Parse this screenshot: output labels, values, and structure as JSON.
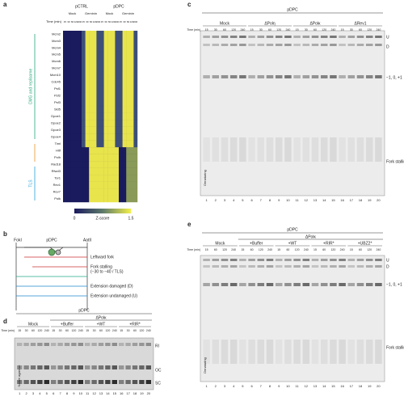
{
  "panel_a": {
    "label": "a",
    "groups": [
      "pCTRL",
      "pDPC"
    ],
    "conditions": [
      "Mock",
      "Geminin",
      "Mock",
      "Geminin"
    ],
    "time_label": "Time (min)",
    "times": [
      "15",
      "30",
      "60",
      "120",
      "240"
    ],
    "rows": [
      "Mcm2",
      "Mcm3",
      "Mcm4",
      "Mcm5",
      "Mcm6",
      "Mcm7",
      "Mcm10",
      "Cdc45",
      "Psf1",
      "Psf2",
      "Psf3",
      "Sld5",
      "Dpoe1",
      "Dpoe2",
      "Dpoe3",
      "Dpoe4",
      "Timl",
      "Hltf",
      "Polh",
      "Rad18",
      "Rfwd3",
      "Tor1",
      "Rev1",
      "Rev7",
      "Polk"
    ],
    "row_groups": [
      "CMG and replisome",
      "TLS"
    ],
    "colorbar_label": "Z-score",
    "colorbar_ticks": [
      "0",
      "1.5"
    ]
  },
  "panel_b": {
    "label": "b",
    "sites": [
      "FokI",
      "pDPC",
      "AatII"
    ],
    "labels": [
      "Leftward fork",
      "Fork stalling",
      "(−30 to −40 / TLS)",
      "Extension damaged (D)",
      "Extension undamaged (U)"
    ]
  },
  "panel_c": {
    "label": "c",
    "plasmid": "pDPC",
    "time_label": "Time (min)",
    "groups": [
      {
        "name": "Mock",
        "times": [
          "15",
          "30",
          "60",
          "120",
          "240"
        ]
      },
      {
        "name": "ΔPolη",
        "times": [
          "15",
          "30",
          "60",
          "120",
          "240"
        ]
      },
      {
        "name": "ΔPolκ",
        "times": [
          "15",
          "30",
          "60",
          "120",
          "240"
        ]
      },
      {
        "name": "ΔRev1",
        "times": [
          "15",
          "30",
          "60",
          "120",
          "240"
        ]
      }
    ],
    "lanes": [
      "1",
      "2",
      "3",
      "4",
      "5",
      "6",
      "7",
      "8",
      "9",
      "10",
      "11",
      "12",
      "13",
      "14",
      "15",
      "16",
      "17",
      "18",
      "19",
      "20"
    ],
    "right_labels": [
      "U",
      "D",
      "−1, 0, +1",
      "Fork stalling (−30 to −40)"
    ],
    "left_label": "Denaturing"
  },
  "panel_d": {
    "label": "d",
    "plasmid": "pDPC",
    "depletion": "ΔPolκ",
    "time_label": "Time (min)",
    "groups": [
      {
        "name": "Mock",
        "times": [
          "15",
          "30",
          "60",
          "120",
          "240"
        ]
      },
      {
        "name": "+Buffer",
        "times": [
          "15",
          "30",
          "60",
          "120",
          "240"
        ]
      },
      {
        "name": "+WT",
        "times": [
          "15",
          "30",
          "60",
          "120",
          "240"
        ]
      },
      {
        "name": "+RIR*",
        "times": [
          "15",
          "30",
          "60",
          "120",
          "240"
        ]
      }
    ],
    "lanes": [
      "1",
      "2",
      "3",
      "4",
      "5",
      "6",
      "7",
      "8",
      "9",
      "10",
      "11",
      "12",
      "13",
      "14",
      "15",
      "16",
      "17",
      "18",
      "19",
      "20"
    ],
    "right_labels": [
      "RI",
      "OC",
      "SC"
    ],
    "left_label": "Native agarose"
  },
  "panel_e": {
    "label": "e",
    "plasmid": "pDPC",
    "depletion": "ΔPolκ",
    "time_label": "Time (min)",
    "groups": [
      {
        "name": "Mock",
        "times": [
          "15",
          "60",
          "120",
          "240"
        ]
      },
      {
        "name": "+Buffer",
        "times": [
          "15",
          "60",
          "120",
          "240"
        ]
      },
      {
        "name": "+WT",
        "times": [
          "15",
          "60",
          "120",
          "240"
        ]
      },
      {
        "name": "+RIR*",
        "times": [
          "15",
          "60",
          "120",
          "240"
        ]
      },
      {
        "name": "+UBZ2*",
        "times": [
          "15",
          "60",
          "120",
          "240"
        ]
      }
    ],
    "lanes": [
      "1",
      "2",
      "3",
      "4",
      "5",
      "6",
      "7",
      "8",
      "9",
      "10",
      "11",
      "12",
      "13",
      "14",
      "15",
      "16",
      "17",
      "18",
      "19",
      "20"
    ],
    "right_labels": [
      "U",
      "D",
      "−1, 0, +1",
      "Fork stalling (−30 to −40)"
    ],
    "left_label": "Denaturing"
  }
}
